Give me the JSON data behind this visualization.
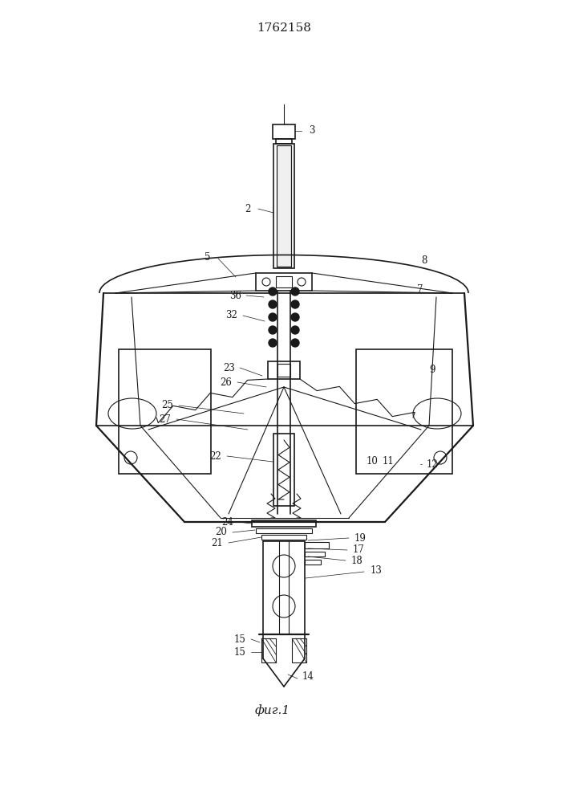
{
  "title": "1762158",
  "caption": "фиг.1",
  "bg_color": "#ffffff",
  "line_color": "#1a1a1a",
  "title_fontsize": 11,
  "caption_fontsize": 11,
  "fig_width": 7.07,
  "fig_height": 10.0
}
